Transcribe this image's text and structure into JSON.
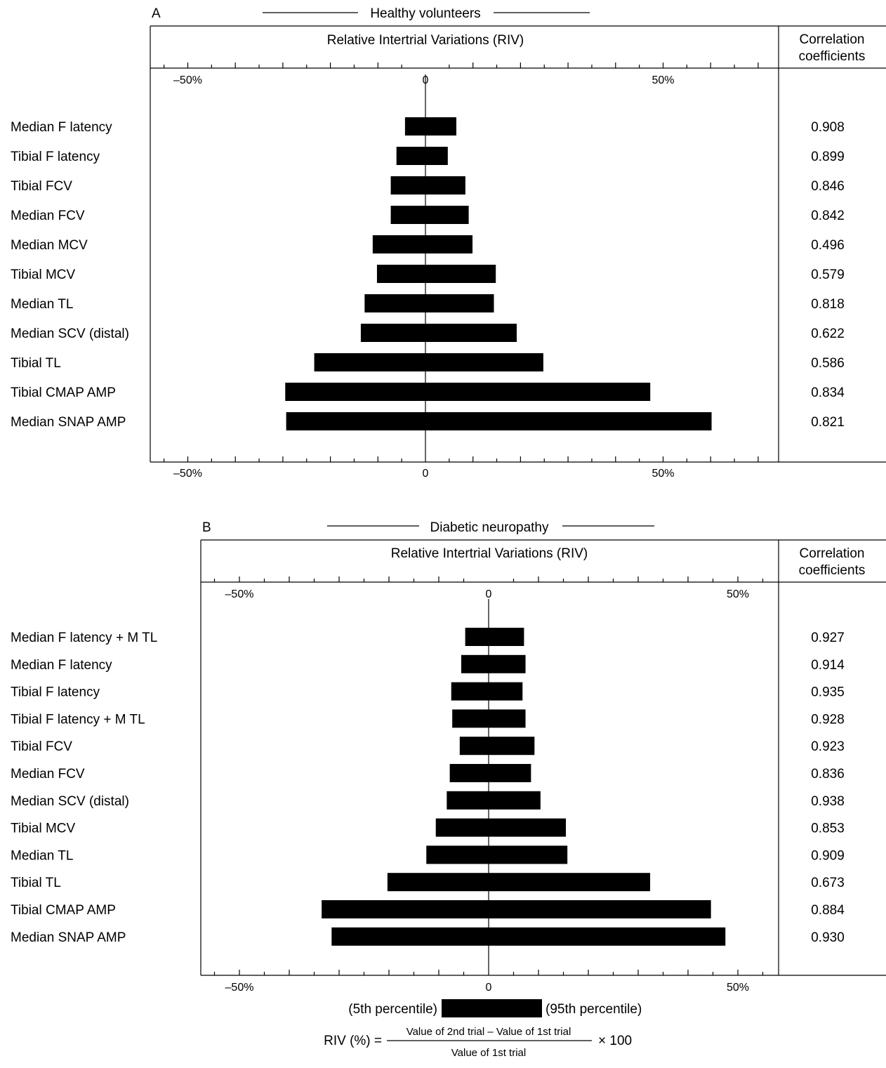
{
  "chart_data": [
    {
      "type": "bar",
      "orientation": "horizontal",
      "panel_label": "A",
      "title": "Healthy volunteers",
      "xlabel": "Relative Intertrial Variations (RIV)",
      "right_header": [
        "Correlation",
        "coefficients"
      ],
      "x_ticks": [
        "–50%",
        "0",
        "50%"
      ],
      "xlim": [
        -58,
        74
      ],
      "categories": [
        "Median F latency",
        "Tibial F latency",
        "Tibial FCV",
        "Median FCV",
        "Median MCV",
        "Tibial MCV",
        "Median TL",
        "Median SCV (distal)",
        "Tibial TL",
        "Tibial CMAP AMP",
        "Median SNAP AMP"
      ],
      "series": [
        {
          "name": "5th percentile",
          "values": [
            -4.3,
            -6.1,
            -7.3,
            -7.3,
            -11.1,
            -10.2,
            -12.8,
            -13.6,
            -23.4,
            -29.5,
            -29.3
          ]
        },
        {
          "name": "95th percentile",
          "values": [
            6.5,
            4.7,
            8.4,
            9.1,
            9.9,
            14.8,
            14.4,
            19.2,
            24.8,
            47.3,
            60.2
          ]
        }
      ],
      "correlation_coefficients": [
        "0.908",
        "0.899",
        "0.846",
        "0.842",
        "0.496",
        "0.579",
        "0.818",
        "0.622",
        "0.586",
        "0.834",
        "0.821"
      ]
    },
    {
      "type": "bar",
      "orientation": "horizontal",
      "panel_label": "B",
      "title": "Diabetic neuropathy",
      "xlabel": "Relative Intertrial Variations (RIV)",
      "right_header": [
        "Correlation",
        "coefficients"
      ],
      "x_ticks": [
        "–50%",
        "0",
        "50%"
      ],
      "xlim": [
        -58,
        58
      ],
      "categories": [
        "Median F latency + M TL",
        "Median F latency",
        "Tibial F latency",
        "Tibial F latency + M TL",
        "Tibial FCV",
        "Median FCV",
        "Median SCV (distal)",
        "Tibial MCV",
        "Median TL",
        "Tibial TL",
        "Tibial CMAP AMP",
        "Median SNAP AMP"
      ],
      "series": [
        {
          "name": "5th percentile",
          "values": [
            -4.7,
            -5.5,
            -7.5,
            -7.3,
            -5.8,
            -7.8,
            -8.4,
            -10.6,
            -12.5,
            -20.3,
            -33.5,
            -31.5
          ]
        },
        {
          "name": "95th percentile",
          "values": [
            7.1,
            7.4,
            6.8,
            7.4,
            9.2,
            8.5,
            10.4,
            15.5,
            15.8,
            32.4,
            44.6,
            47.5
          ]
        }
      ],
      "correlation_coefficients": [
        "0.927",
        "0.914",
        "0.935",
        "0.928",
        "0.923",
        "0.836",
        "0.938",
        "0.853",
        "0.909",
        "0.673",
        "0.884",
        "0.930"
      ]
    }
  ],
  "legend": {
    "low_label": "(5th percentile)",
    "high_label": "(95th percentile)"
  },
  "formula": {
    "lhs": "RIV (%) =",
    "numerator": "Value of 2nd trial – Value of 1st trial",
    "denominator": "Value of 1st trial",
    "multiplier": "× 100"
  }
}
